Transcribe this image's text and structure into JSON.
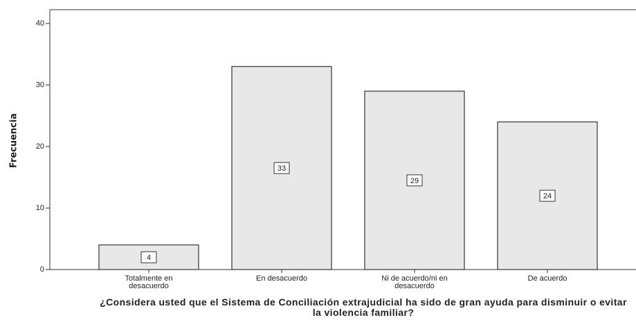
{
  "chart_data": {
    "type": "bar",
    "xlabel": "¿Considera usted que el Sistema de Conciliación extrajudicial ha sido de gran ayuda para disminuir o evitar la violencia familiar?",
    "ylabel": "Frecuencia",
    "categories": [
      "Totalmente en desacuerdo",
      "En desacuerdo",
      "Ni de acuerdo/ni en desacuerdo",
      "De acuerdo"
    ],
    "values": [
      4,
      33,
      29,
      24
    ],
    "color": "#e8e8e8",
    "ylim": [
      0,
      40
    ],
    "yticks": [
      0,
      10,
      20,
      30,
      40
    ]
  }
}
